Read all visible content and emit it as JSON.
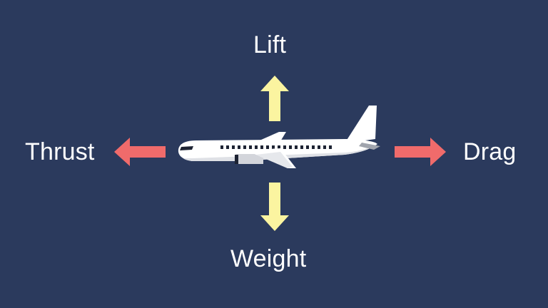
{
  "forces": {
    "lift": "Lift",
    "weight": "Weight",
    "thrust": "Thrust",
    "drag": "Drag"
  },
  "colors": {
    "background": "#2b3a5d",
    "vertical_arrow": "#fbf4a0",
    "horizontal_arrow": "#f06b6b",
    "airplane_body": "#ffffff",
    "airplane_shade": "#d3d5db",
    "airplane_detail": "#1d2333",
    "label_text": "#ffffff"
  },
  "icons": {
    "airplane": "airplane-icon",
    "up": "arrow-up-icon",
    "down": "arrow-down-icon",
    "left": "arrow-left-icon",
    "right": "arrow-right-icon"
  }
}
